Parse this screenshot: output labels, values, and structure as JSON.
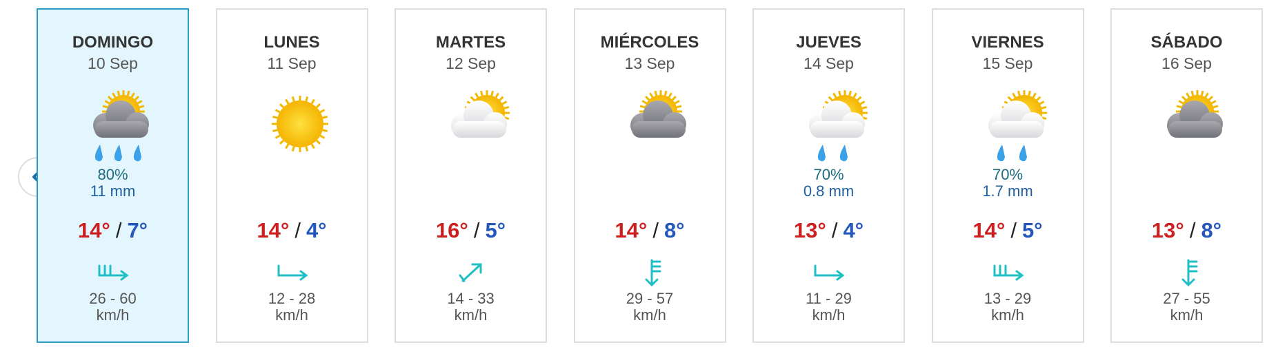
{
  "temp_separator": "/",
  "days": [
    {
      "name": "DOMINGO",
      "date": "10 Sep",
      "probability": "80%",
      "amount": "11 mm",
      "high": "14°",
      "low": "7°",
      "wind": "26 - 60",
      "unit": "km/h"
    },
    {
      "name": "LUNES",
      "date": "11 Sep",
      "high": "14°",
      "low": "4°",
      "wind": "12 - 28",
      "unit": "km/h"
    },
    {
      "name": "MARTES",
      "date": "12 Sep",
      "high": "16°",
      "low": "5°",
      "wind": "14 - 33",
      "unit": "km/h"
    },
    {
      "name": "MIÉRCOLES",
      "date": "13 Sep",
      "high": "14°",
      "low": "8°",
      "wind": "29 - 57",
      "unit": "km/h"
    },
    {
      "name": "JUEVES",
      "date": "14 Sep",
      "probability": "70%",
      "amount": "0.8 mm",
      "high": "13°",
      "low": "4°",
      "wind": "11 - 29",
      "unit": "km/h"
    },
    {
      "name": "VIERNES",
      "date": "15 Sep",
      "probability": "70%",
      "amount": "1.7 mm",
      "high": "14°",
      "low": "5°",
      "wind": "13 - 29",
      "unit": "km/h"
    },
    {
      "name": "SÁBADO",
      "date": "16 Sep",
      "high": "13°",
      "low": "8°",
      "wind": "27 - 55",
      "unit": "km/h"
    }
  ]
}
